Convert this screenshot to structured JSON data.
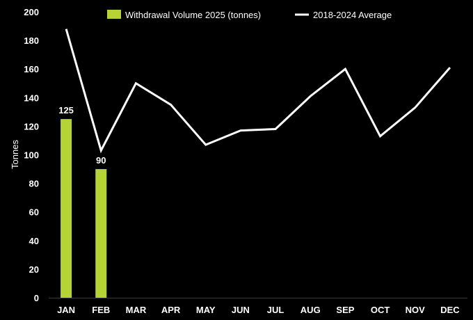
{
  "chart_data": {
    "type": "bar",
    "categories": [
      "JAN",
      "FEB",
      "MAR",
      "APR",
      "MAY",
      "JUN",
      "JUL",
      "AUG",
      "SEP",
      "OCT",
      "NOV",
      "DEC"
    ],
    "series": [
      {
        "name": "Withdrawal Volume 2025 (tonnes)",
        "kind": "bar",
        "color": "#b5d334",
        "values": [
          125,
          90,
          null,
          null,
          null,
          null,
          null,
          null,
          null,
          null,
          null,
          null
        ]
      },
      {
        "name": "2018-2024 Average",
        "kind": "line",
        "color": "#ffffff",
        "values": [
          188,
          103,
          150,
          135,
          107,
          117,
          118,
          141,
          160,
          113,
          133,
          161
        ]
      }
    ],
    "data_labels": [
      "125",
      "90"
    ],
    "title": "",
    "xlabel": "",
    "ylabel": "Tonnes",
    "ylim": [
      0,
      200
    ],
    "yticks": [
      0,
      20,
      40,
      60,
      80,
      100,
      120,
      140,
      160,
      180,
      200
    ],
    "grid": false,
    "legend_position": "top"
  }
}
